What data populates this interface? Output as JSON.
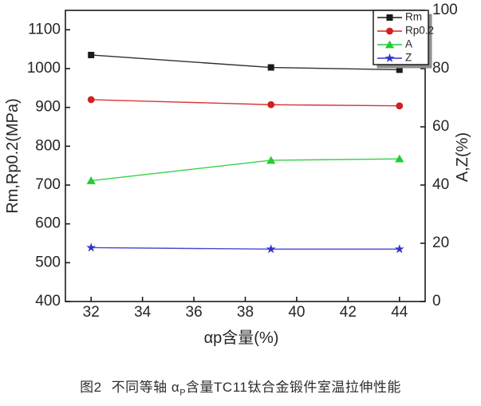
{
  "figure": {
    "caption": {
      "prefix": "图2",
      "body_before_sub": "不同等轴 α",
      "sub": "P",
      "body_after_sub": "含量TC11钛合金锻件室温拉伸性能"
    }
  },
  "chart_data": {
    "type": "line",
    "x": [
      32,
      39,
      44
    ],
    "x_axis": {
      "label": "αp含量(%)",
      "min": 31,
      "max": 45,
      "ticks": [
        32,
        34,
        36,
        38,
        40,
        42,
        44
      ]
    },
    "left_axis": {
      "label": "Rm,Rp0.2(MPa)",
      "min": 400,
      "max": 1150,
      "ticks": [
        400,
        500,
        600,
        700,
        800,
        900,
        1000,
        1100
      ]
    },
    "right_axis": {
      "label": "A,Z(%)",
      "min": 0,
      "max": 100,
      "ticks": [
        0,
        20,
        40,
        60,
        80,
        100
      ]
    },
    "series": [
      {
        "name": "Rm",
        "axis": "left",
        "color": "#1a1a1a",
        "marker": "square",
        "values": [
          1035,
          1003,
          997
        ]
      },
      {
        "name": "Rp0.2",
        "axis": "left",
        "color": "#d42020",
        "marker": "circle",
        "values": [
          920,
          907,
          904
        ]
      },
      {
        "name": "A",
        "axis": "right",
        "color": "#22cc33",
        "marker": "triangle",
        "values": [
          41.5,
          48.5,
          49
        ]
      },
      {
        "name": "Z",
        "axis": "right",
        "color": "#3333cc",
        "marker": "star",
        "values": [
          18.5,
          18,
          18
        ]
      }
    ],
    "legend": {
      "position": "top-right",
      "entries": [
        "Rm",
        "Rp0.2",
        "A",
        "Z"
      ]
    },
    "grid": false
  }
}
